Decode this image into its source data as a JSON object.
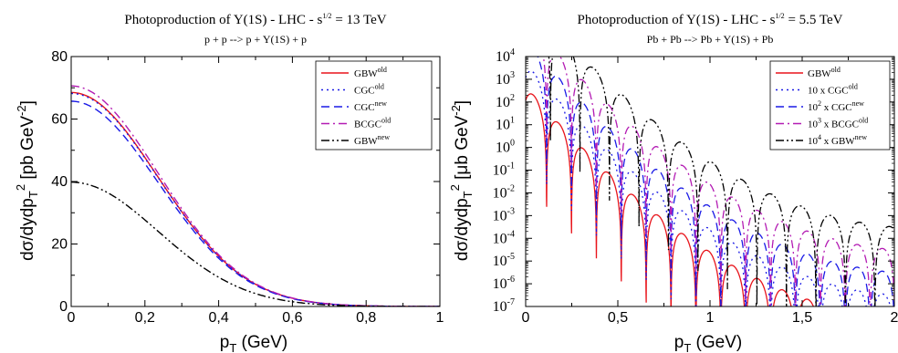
{
  "chart_data": [
    {
      "type": "line",
      "title": "Photoproduction of Y(1S) - LHC - s",
      "title_sup": "1/2",
      "title_tail": " = 13 TeV",
      "subtitle": "p + p --> p + Y(1S) + p",
      "xlabel": "p",
      "xlabel_sub": "T",
      "xlabel_tail": " (GeV)",
      "ylabel": "dσ/dydp",
      "ylabel_sub": "T",
      "ylabel_sup": "2",
      "ylabel_tail": " [pb GeV",
      "ylabel_tail_sup": "-2",
      "ylabel_close": "]",
      "xlim": [
        0,
        1
      ],
      "ylim": [
        0,
        80
      ],
      "x_ticks": [
        0,
        0.2,
        0.4,
        0.6,
        0.8,
        1.0
      ],
      "x_tick_labels": [
        "0",
        "0,2",
        "0,4",
        "0,6",
        "0,8",
        "1"
      ],
      "y_ticks": [
        0,
        20,
        40,
        60,
        80
      ],
      "y_tick_labels": [
        "0",
        "20",
        "40",
        "60",
        "80"
      ],
      "legend_position": "top-right",
      "series": [
        {
          "name": "GBW",
          "sup": "old",
          "color": "#e8141b",
          "dash": "",
          "peak": 68.5
        },
        {
          "name": "CGC",
          "sup": "old",
          "color": "#1a1ae6",
          "dash": "2,4",
          "peak": 68.2
        },
        {
          "name": "CGC",
          "sup": "new",
          "color": "#1a1ae6",
          "dash": "9,5",
          "peak": 65.7
        },
        {
          "name": "BCGC",
          "sup": "old",
          "color": "#b31bb3",
          "dash": "9,4,2,4",
          "peak": 70.6
        },
        {
          "name": "GBW",
          "sup": "new",
          "color": "#000000",
          "dash": "9,3,2,3,2,3",
          "peak": 39.8
        }
      ]
    },
    {
      "type": "line",
      "title": "Photoproduction of Y(1S) - LHC - s",
      "title_sup": "1/2",
      "title_tail": " = 5.5 TeV",
      "subtitle": "Pb + Pb --> Pb + Y(1S) + Pb",
      "xlabel": "p",
      "xlabel_sub": "T",
      "xlabel_tail": " (GeV)",
      "ylabel": "dσ/dydp",
      "ylabel_sub": "T",
      "ylabel_sup": "2",
      "ylabel_tail": " [μb GeV",
      "ylabel_tail_sup": "-2",
      "ylabel_close": "]",
      "xlim": [
        0,
        2
      ],
      "ylim_log10": [
        -7,
        4
      ],
      "y_scale": "log",
      "x_ticks": [
        0,
        0.5,
        1.0,
        1.5,
        2.0
      ],
      "x_tick_labels": [
        "0",
        "0,5",
        "1",
        "1,5",
        "2"
      ],
      "y_tick_exponents": [
        -7,
        -6,
        -5,
        -4,
        -3,
        -2,
        -1,
        0,
        1,
        2,
        3,
        4
      ],
      "y_tick_base": "10",
      "legend_position": "top-right",
      "series": [
        {
          "name": "GBW",
          "prefix": "",
          "prefix_sup": "",
          "sup": "old",
          "color": "#e8141b",
          "dash": "",
          "log_amp0": 3.3,
          "zero_period": 0.135
        },
        {
          "name": "CGC",
          "prefix": "10 x ",
          "prefix_sup": "",
          "sup": "old",
          "color": "#1a1ae6",
          "dash": "2,4",
          "log_amp0": 4.3,
          "zero_period": 0.135
        },
        {
          "name": "CGC",
          "prefix": "10",
          "prefix_sup": "2",
          "prefix_after": " x ",
          "sup": "new",
          "color": "#1a1ae6",
          "dash": "9,5",
          "log_amp0": 5.3,
          "zero_period": 0.135
        },
        {
          "name": "BCGC",
          "prefix": "10",
          "prefix_sup": "3",
          "prefix_after": " x ",
          "sup": "old",
          "color": "#b31bb3",
          "dash": "9,4,2,4",
          "log_amp0": 6.3,
          "zero_period": 0.135
        },
        {
          "name": "GBW",
          "prefix": "10",
          "prefix_sup": "4",
          "prefix_after": " x ",
          "sup": "new",
          "color": "#000000",
          "dash": "9,3,2,3,2,3",
          "log_amp0": 7.3,
          "zero_period": 0.16
        }
      ]
    }
  ]
}
